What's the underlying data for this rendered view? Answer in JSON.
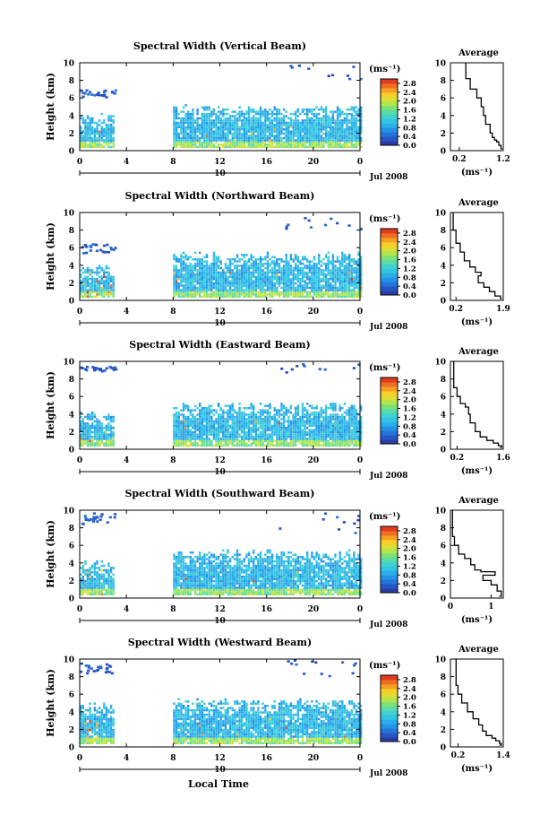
{
  "page": {
    "date_label": "Jul 2008",
    "xlabel": "Local Time",
    "day_label": "10"
  },
  "chart_data": [
    {
      "type": "heatmap",
      "title": "Spectral Width (Vertical Beam)",
      "ylabel": "Height (km)",
      "xlim": [
        0,
        24
      ],
      "ylim": [
        0,
        10
      ],
      "x_ticks": [
        "0",
        "4",
        "8",
        "12",
        "16",
        "20",
        "0"
      ],
      "y_ticks": [
        "0",
        "2",
        "4",
        "6",
        "8",
        "10"
      ],
      "colorbar": {
        "unit": "(ms⁻¹)",
        "ticks": [
          "0.0",
          "0.4",
          "0.8",
          "1.2",
          "1.6",
          "2.0",
          "2.4",
          "2.8"
        ],
        "range": [
          0,
          3.0
        ]
      },
      "data_segments": [
        {
          "x": [
            0,
            3
          ],
          "top_km": 3.7,
          "cloud_km": [
            6.0,
            7.0
          ],
          "hot": 0.5
        },
        {
          "x": [
            8,
            24
          ],
          "top_km": 4.7,
          "cloud_km": [
            8.0,
            10.0
          ],
          "hot": 0.1
        }
      ],
      "profile": {
        "title": "Average",
        "xlabel": "(ms⁻¹)",
        "xlim": [
          0,
          1.2
        ],
        "x_ticks": [
          {
            "v": 0.2,
            "t": "0.2"
          },
          {
            "v": 1.2,
            "t": "1.2"
          }
        ],
        "ylim": [
          0,
          10
        ],
        "y_ticks": [
          "0",
          "2",
          "4",
          "6",
          "8",
          "10"
        ],
        "x": [
          0.35,
          0.45,
          0.6,
          0.7,
          0.75,
          0.8,
          0.9,
          0.95,
          1.0,
          1.05,
          1.1,
          1.15,
          1.18
        ],
        "y": [
          10,
          8.2,
          7.0,
          6.0,
          5.0,
          4.0,
          3.0,
          2.0,
          1.5,
          1.2,
          1.0,
          0.6,
          0.2
        ]
      }
    },
    {
      "type": "heatmap",
      "title": "Spectral Width (Northward Beam)",
      "ylabel": "Height (km)",
      "xlim": [
        0,
        24
      ],
      "ylim": [
        0,
        10
      ],
      "x_ticks": [
        "0",
        "4",
        "8",
        "12",
        "16",
        "20",
        "0"
      ],
      "y_ticks": [
        "0",
        "2",
        "4",
        "6",
        "8",
        "10"
      ],
      "colorbar": {
        "unit": "(ms⁻¹)",
        "ticks": [
          "0.0",
          "0.4",
          "0.8",
          "1.2",
          "1.6",
          "2.0",
          "2.4",
          "2.8"
        ],
        "range": [
          0,
          3.0
        ]
      },
      "data_segments": [
        {
          "x": [
            0,
            3
          ],
          "top_km": 3.6,
          "cloud_km": [
            5.5,
            6.5
          ],
          "hot": 0.6
        },
        {
          "x": [
            8,
            24
          ],
          "top_km": 5.0,
          "cloud_km": [
            8.0,
            9.5
          ],
          "hot": 0.1
        }
      ],
      "profile": {
        "title": "Average",
        "xlabel": "(ms⁻¹)",
        "xlim": [
          0,
          1.9
        ],
        "x_ticks": [
          {
            "v": 0.2,
            "t": "0.2"
          },
          {
            "v": 1.9,
            "t": "1.9"
          }
        ],
        "ylim": [
          0,
          10
        ],
        "y_ticks": [
          "0",
          "2",
          "4",
          "6",
          "8",
          "10"
        ],
        "x": [
          0.1,
          0.2,
          0.35,
          0.5,
          0.7,
          0.9,
          1.1,
          1.0,
          1.2,
          1.4,
          1.6,
          1.8,
          1.85
        ],
        "y": [
          10,
          8.0,
          6.5,
          5.5,
          4.5,
          3.8,
          3.2,
          2.8,
          2.0,
          1.5,
          1.0,
          0.5,
          0.2
        ]
      }
    },
    {
      "type": "heatmap",
      "title": "Spectral Width (Eastward Beam)",
      "ylabel": "Height (km)",
      "xlim": [
        0,
        24
      ],
      "ylim": [
        0,
        10
      ],
      "x_ticks": [
        "0",
        "4",
        "8",
        "12",
        "16",
        "20",
        "0"
      ],
      "y_ticks": [
        "0",
        "2",
        "4",
        "6",
        "8",
        "10"
      ],
      "colorbar": {
        "unit": "(ms⁻¹)",
        "ticks": [
          "0.0",
          "0.4",
          "0.8",
          "1.2",
          "1.6",
          "2.0",
          "2.4",
          "2.8"
        ],
        "range": [
          0,
          3.0
        ]
      },
      "data_segments": [
        {
          "x": [
            0,
            3
          ],
          "top_km": 3.8,
          "cloud_km": [
            9.0,
            9.5
          ],
          "hot": 0.7
        },
        {
          "x": [
            8,
            24
          ],
          "top_km": 4.8,
          "cloud_km": [
            8.8,
            10.0
          ],
          "hot": 0.15
        }
      ],
      "profile": {
        "title": "Average",
        "xlabel": "(ms⁻¹)",
        "xlim": [
          0,
          1.6
        ],
        "x_ticks": [
          {
            "v": 0.2,
            "t": "0.2"
          },
          {
            "v": 1.6,
            "t": "1.6"
          }
        ],
        "ylim": [
          0,
          10
        ],
        "y_ticks": [
          "0",
          "2",
          "4",
          "6",
          "8",
          "10"
        ],
        "x": [
          0.1,
          0.2,
          0.3,
          0.45,
          0.55,
          0.6,
          0.75,
          0.9,
          1.1,
          1.3,
          1.45,
          1.55,
          1.5
        ],
        "y": [
          10,
          7.0,
          6.0,
          5.2,
          4.8,
          4.0,
          3.0,
          2.0,
          1.4,
          1.0,
          0.7,
          0.4,
          0.2
        ]
      }
    },
    {
      "type": "heatmap",
      "title": "Spectral Width (Southward Beam)",
      "ylabel": "Height (km)",
      "xlim": [
        0,
        24
      ],
      "ylim": [
        0,
        10
      ],
      "x_ticks": [
        "0",
        "4",
        "8",
        "12",
        "16",
        "20",
        "0"
      ],
      "y_ticks": [
        "0",
        "2",
        "4",
        "6",
        "8",
        "10"
      ],
      "colorbar": {
        "unit": "(ms⁻¹)",
        "ticks": [
          "0.0",
          "0.4",
          "0.8",
          "1.2",
          "1.6",
          "2.0",
          "2.4",
          "2.8"
        ],
        "range": [
          0,
          3.0
        ]
      },
      "data_segments": [
        {
          "x": [
            0,
            3
          ],
          "top_km": 3.8,
          "cloud_km": [
            8.5,
            9.8
          ],
          "hot": 0.5
        },
        {
          "x": [
            8,
            24
          ],
          "top_km": 5.0,
          "cloud_km": [
            7.5,
            9.8
          ],
          "hot": 0.1
        }
      ],
      "profile": {
        "title": "Average",
        "xlabel": "(ms⁻¹)",
        "xlim": [
          0,
          1.3
        ],
        "x_ticks": [
          {
            "v": 0.0,
            "t": "0"
          },
          {
            "v": 1.0,
            "t": "1"
          }
        ],
        "ylim": [
          0,
          10
        ],
        "y_ticks": [
          "0",
          "2",
          "4",
          "6",
          "8",
          "10"
        ],
        "x": [
          0.05,
          0.1,
          0.2,
          0.35,
          0.5,
          0.6,
          0.75,
          1.1,
          0.8,
          1.0,
          1.15,
          1.25,
          1.2
        ],
        "y": [
          10,
          7.0,
          6.0,
          5.0,
          4.5,
          3.8,
          3.2,
          3.0,
          2.6,
          2.0,
          1.5,
          0.8,
          0.2
        ]
      }
    },
    {
      "type": "heatmap",
      "title": "Spectral Width (Westward Beam)",
      "ylabel": "Height (km)",
      "xlim": [
        0,
        24
      ],
      "ylim": [
        0,
        10
      ],
      "x_ticks": [
        "0",
        "4",
        "8",
        "12",
        "16",
        "20",
        "0"
      ],
      "y_ticks": [
        "0",
        "2",
        "4",
        "6",
        "8",
        "10"
      ],
      "colorbar": {
        "unit": "(ms⁻¹)",
        "ticks": [
          "0.0",
          "0.4",
          "0.8",
          "1.2",
          "1.6",
          "2.0",
          "2.4",
          "2.8"
        ],
        "range": [
          0,
          3.0
        ]
      },
      "data_segments": [
        {
          "x": [
            0,
            3
          ],
          "top_km": 4.5,
          "cloud_km": [
            8.5,
            9.8
          ],
          "hot": 0.6
        },
        {
          "x": [
            8,
            24
          ],
          "top_km": 5.0,
          "cloud_km": [
            8.0,
            10.0
          ],
          "hot": 0.15
        }
      ],
      "profile": {
        "title": "Average",
        "xlabel": "(ms⁻¹)",
        "xlim": [
          0,
          1.4
        ],
        "x_ticks": [
          {
            "v": 0.2,
            "t": "0.2"
          },
          {
            "v": 1.4,
            "t": "1.4"
          }
        ],
        "ylim": [
          0,
          10
        ],
        "y_ticks": [
          "0",
          "2",
          "4",
          "6",
          "8",
          "10"
        ],
        "x": [
          0.15,
          0.2,
          0.3,
          0.45,
          0.6,
          0.75,
          0.85,
          0.95,
          1.1,
          1.2,
          1.3,
          1.35,
          1.3
        ],
        "y": [
          10,
          7.0,
          6.0,
          5.0,
          4.0,
          3.2,
          2.5,
          1.8,
          1.3,
          1.0,
          0.7,
          0.4,
          0.2
        ]
      }
    }
  ]
}
